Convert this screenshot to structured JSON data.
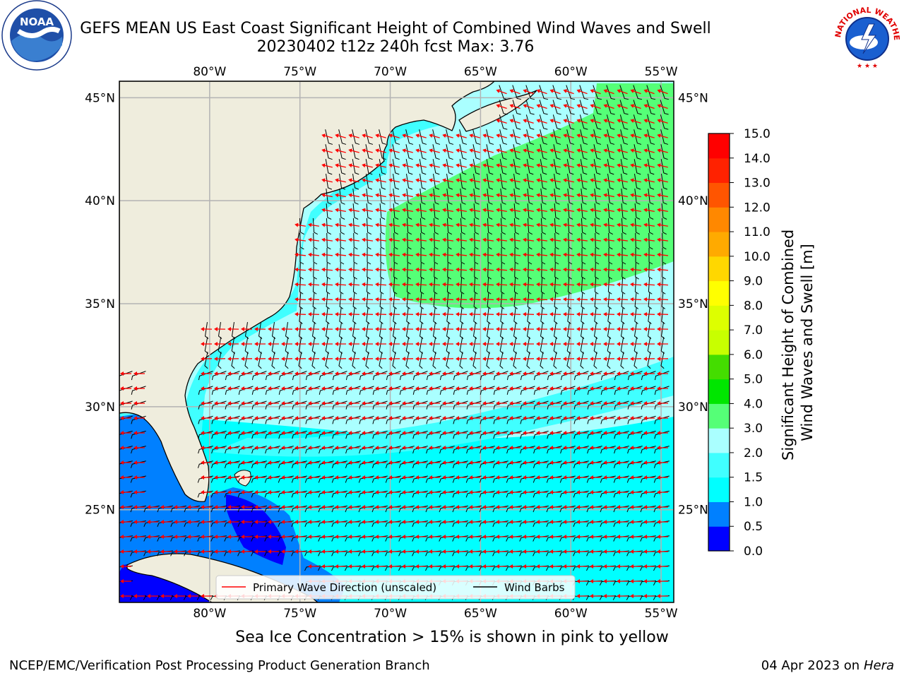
{
  "header": {
    "title_line1": "GEFS MEAN US East Coast Significant Height of Combined Wind Waves and Swell",
    "title_line2": "20230402 t12z 240h fcst   Max: 3.76"
  },
  "logos": {
    "left": "NOAA",
    "right_ring_text": "NATIONAL WEATHER SERVICE"
  },
  "map": {
    "lon_labels": [
      "80°W",
      "75°W",
      "70°W",
      "65°W",
      "60°W",
      "55°W"
    ],
    "lat_labels": [
      "45°N",
      "40°N",
      "35°N",
      "30°N",
      "25°N"
    ],
    "lon_values": [
      -80,
      -75,
      -70,
      -65,
      -60,
      -55
    ],
    "lat_values": [
      45,
      40,
      35,
      30,
      25
    ],
    "extent": {
      "lon_min": -85,
      "lon_max": -54.3,
      "lat_min": 20.5,
      "lat_max": 45.8
    },
    "land_color": "#efeddd",
    "grid_color": "#b3b3b3",
    "arrow_color": "#ff0000",
    "barb_color": "#000000"
  },
  "legend": {
    "wave_label": "Primary Wave Direction (unscaled)",
    "barb_label": "Wind Barbs"
  },
  "colorbar": {
    "label_line1": "Significant Height of Combined",
    "label_line2": "Wind Waves and Swell [m]",
    "ticks": [
      "0.0",
      "0.5",
      "1.0",
      "1.5",
      "2.0",
      "3.0",
      "4.0",
      "5.0",
      "6.0",
      "7.0",
      "8.0",
      "9.0",
      "10.0",
      "11.0",
      "12.0",
      "13.0",
      "14.0",
      "15.0"
    ],
    "colors": [
      "#0000ff",
      "#0080ff",
      "#00ffff",
      "#40ffff",
      "#aaffff",
      "#55ff77",
      "#00e600",
      "#44dd00",
      "#c8ff00",
      "#ddff00",
      "#ffff00",
      "#ffd700",
      "#ffaa00",
      "#ff8800",
      "#ff5500",
      "#ff2200",
      "#ff0000"
    ]
  },
  "notes": {
    "ice": "Sea Ice Concentration > 15% is shown in pink to yellow"
  },
  "footer": {
    "left": "NCEP/EMC/Verification Post Processing Product Generation Branch",
    "date": "04 Apr 2023 on ",
    "machine": "Hera"
  }
}
